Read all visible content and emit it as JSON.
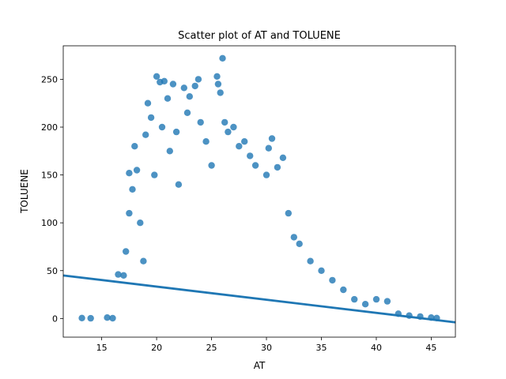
{
  "chart_data": {
    "type": "scatter",
    "title": "Scatter plot of AT and TOLUENE",
    "xlabel": "AT",
    "ylabel": "TOLUENE",
    "xlim": [
      11.5,
      47.2
    ],
    "ylim": [
      -19.5,
      285
    ],
    "xticks": [
      15,
      20,
      25,
      30,
      35,
      40,
      45
    ],
    "yticks": [
      0,
      50,
      100,
      150,
      200,
      250
    ],
    "grid": false,
    "legend": "none",
    "color": "#1f77b4",
    "regression_line": {
      "x": [
        11.5,
        47.2
      ],
      "y": [
        45,
        -4
      ]
    },
    "points_sampled": [
      [
        13.2,
        0.5
      ],
      [
        14.0,
        0.2
      ],
      [
        15.5,
        1.0
      ],
      [
        16.0,
        0.3
      ],
      [
        16.5,
        46
      ],
      [
        17.0,
        45
      ],
      [
        17.2,
        70
      ],
      [
        17.5,
        152
      ],
      [
        17.8,
        135
      ],
      [
        17.5,
        110
      ],
      [
        18.0,
        180
      ],
      [
        18.2,
        155
      ],
      [
        18.5,
        100
      ],
      [
        18.8,
        60
      ],
      [
        19.0,
        192
      ],
      [
        19.2,
        225
      ],
      [
        19.5,
        210
      ],
      [
        19.8,
        150
      ],
      [
        20.0,
        253
      ],
      [
        20.3,
        247
      ],
      [
        20.7,
        248
      ],
      [
        20.5,
        200
      ],
      [
        21.0,
        230
      ],
      [
        21.2,
        175
      ],
      [
        21.5,
        245
      ],
      [
        21.8,
        195
      ],
      [
        22.0,
        140
      ],
      [
        22.5,
        241
      ],
      [
        22.8,
        215
      ],
      [
        23.0,
        232
      ],
      [
        23.5,
        243
      ],
      [
        23.8,
        250
      ],
      [
        24.0,
        205
      ],
      [
        24.5,
        185
      ],
      [
        25.0,
        160
      ],
      [
        25.5,
        253
      ],
      [
        25.6,
        245
      ],
      [
        25.8,
        236
      ],
      [
        26.0,
        272
      ],
      [
        26.2,
        205
      ],
      [
        26.5,
        195
      ],
      [
        27.0,
        200
      ],
      [
        27.5,
        180
      ],
      [
        28.0,
        185
      ],
      [
        28.5,
        170
      ],
      [
        29.0,
        160
      ],
      [
        30.0,
        150
      ],
      [
        30.5,
        188
      ],
      [
        30.2,
        178
      ],
      [
        31.0,
        158
      ],
      [
        31.5,
        168
      ],
      [
        32.0,
        110
      ],
      [
        32.5,
        85
      ],
      [
        33.0,
        78
      ],
      [
        34.0,
        60
      ],
      [
        35.0,
        50
      ],
      [
        36.0,
        40
      ],
      [
        37.0,
        30
      ],
      [
        38.0,
        20
      ],
      [
        39.0,
        15
      ],
      [
        40.0,
        20
      ],
      [
        41.0,
        18
      ],
      [
        42.0,
        5
      ],
      [
        43.0,
        3
      ],
      [
        44.0,
        2
      ],
      [
        45.0,
        1
      ],
      [
        45.5,
        0.5
      ]
    ]
  }
}
